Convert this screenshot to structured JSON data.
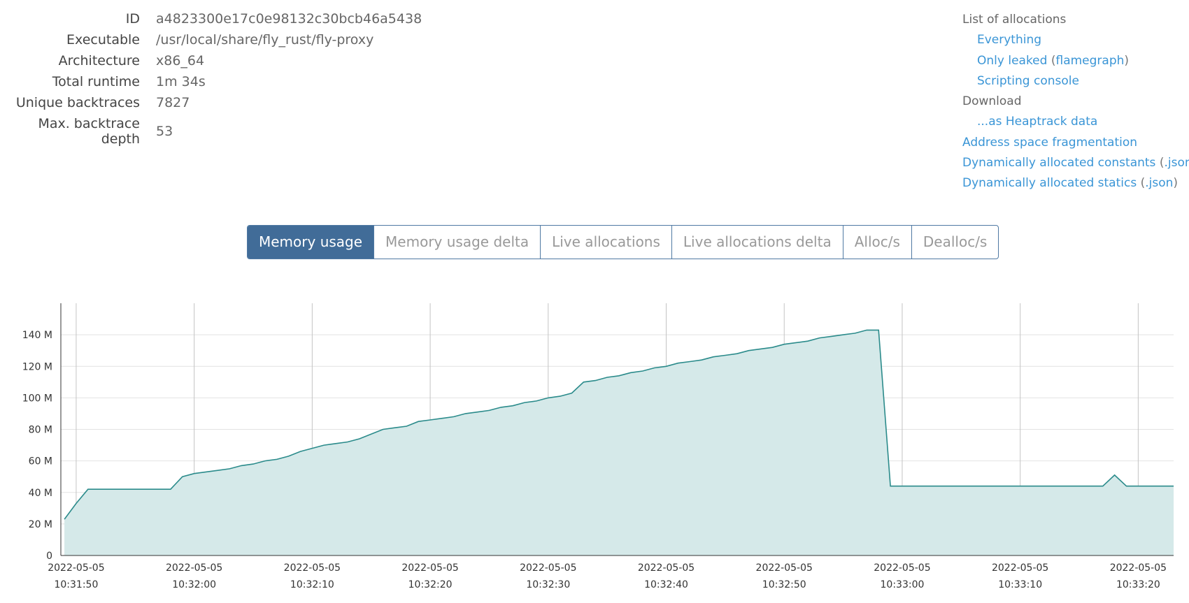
{
  "info": [
    {
      "label": "ID",
      "value": "a4823300e17c0e98132c30bcb46a5438"
    },
    {
      "label": "Executable",
      "value": "/usr/local/share/fly_rust/fly-proxy"
    },
    {
      "label": "Architecture",
      "value": "x86_64"
    },
    {
      "label": "Total runtime",
      "value": "1m 34s"
    },
    {
      "label": "Unique backtraces",
      "value": "7827"
    },
    {
      "label": "Max. backtrace depth",
      "value": "53"
    }
  ],
  "links": [
    {
      "text": "List of allocations",
      "kind": "heading"
    },
    {
      "text": "Everything",
      "kind": "sub"
    },
    {
      "text": "Only leaked",
      "kind": "sub",
      "extra": [
        "(",
        "flamegraph",
        ")"
      ]
    },
    {
      "text": "Scripting console",
      "kind": "sub"
    },
    {
      "text": "Download",
      "kind": "heading"
    },
    {
      "text": "...as Heaptrack data",
      "kind": "sub"
    },
    {
      "text": "Address space fragmentation",
      "kind": "link"
    },
    {
      "text": "Dynamically allocated constants",
      "kind": "link",
      "extra": [
        "(",
        ".json",
        ")"
      ]
    },
    {
      "text": "Dynamically allocated statics",
      "kind": "link",
      "extra": [
        "(",
        ".json",
        ")"
      ]
    }
  ],
  "tabs": [
    "Memory usage",
    "Memory usage delta",
    "Live allocations",
    "Live allocations delta",
    "Alloc/s",
    "Dealloc/s"
  ],
  "active_tab": 0,
  "chart_data": {
    "type": "area",
    "x": [
      "2022-05-05 10:31:49",
      "2022-05-05 10:31:50",
      "2022-05-05 10:31:51",
      "2022-05-05 10:31:52",
      "2022-05-05 10:31:53",
      "2022-05-05 10:31:54",
      "2022-05-05 10:31:55",
      "2022-05-05 10:31:56",
      "2022-05-05 10:31:57",
      "2022-05-05 10:31:58",
      "2022-05-05 10:31:59",
      "2022-05-05 10:32:00",
      "2022-05-05 10:32:01",
      "2022-05-05 10:32:02",
      "2022-05-05 10:32:03",
      "2022-05-05 10:32:04",
      "2022-05-05 10:32:05",
      "2022-05-05 10:32:06",
      "2022-05-05 10:32:07",
      "2022-05-05 10:32:08",
      "2022-05-05 10:32:09",
      "2022-05-05 10:32:10",
      "2022-05-05 10:32:11",
      "2022-05-05 10:32:12",
      "2022-05-05 10:32:13",
      "2022-05-05 10:32:14",
      "2022-05-05 10:32:15",
      "2022-05-05 10:32:16",
      "2022-05-05 10:32:17",
      "2022-05-05 10:32:18",
      "2022-05-05 10:32:19",
      "2022-05-05 10:32:20",
      "2022-05-05 10:32:21",
      "2022-05-05 10:32:22",
      "2022-05-05 10:32:23",
      "2022-05-05 10:32:24",
      "2022-05-05 10:32:25",
      "2022-05-05 10:32:26",
      "2022-05-05 10:32:27",
      "2022-05-05 10:32:28",
      "2022-05-05 10:32:29",
      "2022-05-05 10:32:30",
      "2022-05-05 10:32:31",
      "2022-05-05 10:32:32",
      "2022-05-05 10:32:33",
      "2022-05-05 10:32:34",
      "2022-05-05 10:32:35",
      "2022-05-05 10:32:36",
      "2022-05-05 10:32:37",
      "2022-05-05 10:32:38",
      "2022-05-05 10:32:39",
      "2022-05-05 10:32:40",
      "2022-05-05 10:32:41",
      "2022-05-05 10:32:42",
      "2022-05-05 10:32:43",
      "2022-05-05 10:32:44",
      "2022-05-05 10:32:45",
      "2022-05-05 10:32:46",
      "2022-05-05 10:32:47",
      "2022-05-05 10:32:48",
      "2022-05-05 10:32:49",
      "2022-05-05 10:32:50",
      "2022-05-05 10:32:51",
      "2022-05-05 10:32:52",
      "2022-05-05 10:32:53",
      "2022-05-05 10:32:54",
      "2022-05-05 10:32:55",
      "2022-05-05 10:32:56",
      "2022-05-05 10:32:57",
      "2022-05-05 10:32:58",
      "2022-05-05 10:32:59",
      "2022-05-05 10:33:00",
      "2022-05-05 10:33:01",
      "2022-05-05 10:33:02",
      "2022-05-05 10:33:03",
      "2022-05-05 10:33:04",
      "2022-05-05 10:33:05",
      "2022-05-05 10:33:06",
      "2022-05-05 10:33:07",
      "2022-05-05 10:33:08",
      "2022-05-05 10:33:09",
      "2022-05-05 10:33:10",
      "2022-05-05 10:33:11",
      "2022-05-05 10:33:12",
      "2022-05-05 10:33:13",
      "2022-05-05 10:33:14",
      "2022-05-05 10:33:15",
      "2022-05-05 10:33:16",
      "2022-05-05 10:33:17",
      "2022-05-05 10:33:18",
      "2022-05-05 10:33:19",
      "2022-05-05 10:33:20",
      "2022-05-05 10:33:21",
      "2022-05-05 10:33:22",
      "2022-05-05 10:33:23"
    ],
    "values": [
      23,
      33,
      42,
      42,
      42,
      42,
      42,
      42,
      42,
      42,
      50,
      52,
      53,
      54,
      55,
      57,
      58,
      60,
      61,
      63,
      66,
      68,
      70,
      71,
      72,
      74,
      77,
      80,
      81,
      82,
      85,
      86,
      87,
      88,
      90,
      91,
      92,
      94,
      95,
      97,
      98,
      100,
      101,
      103,
      110,
      111,
      113,
      114,
      116,
      117,
      119,
      120,
      122,
      123,
      124,
      126,
      127,
      128,
      130,
      131,
      132,
      134,
      135,
      136,
      138,
      139,
      140,
      141,
      143,
      143,
      44,
      44,
      44,
      44,
      44,
      44,
      44,
      44,
      44,
      44,
      44,
      44,
      44,
      44,
      44,
      44,
      44,
      44,
      44,
      51,
      44,
      44,
      44,
      44,
      44
    ],
    "color": "#2b8b8b",
    "fill": "#d5e9e9",
    "xlim": [
      "2022-05-05 10:31:48.7",
      "2022-05-05 10:33:23"
    ],
    "xticks": [
      "2022-05-05 10:31:50",
      "2022-05-05 10:32:00",
      "2022-05-05 10:32:10",
      "2022-05-05 10:32:20",
      "2022-05-05 10:32:30",
      "2022-05-05 10:32:40",
      "2022-05-05 10:32:50",
      "2022-05-05 10:33:00",
      "2022-05-05 10:33:10",
      "2022-05-05 10:33:20"
    ],
    "ylim": [
      0,
      160
    ],
    "yticks": [
      0,
      {
        "value": 20,
        "label": "20 M"
      },
      {
        "value": 40,
        "label": "40 M"
      },
      {
        "value": 60,
        "label": "60 M"
      },
      {
        "value": 80,
        "label": "80 M"
      },
      {
        "value": 100,
        "label": "100 M"
      },
      {
        "value": 120,
        "label": "120 M"
      },
      {
        "value": 140,
        "label": "140 M"
      }
    ],
    "grid": true
  }
}
